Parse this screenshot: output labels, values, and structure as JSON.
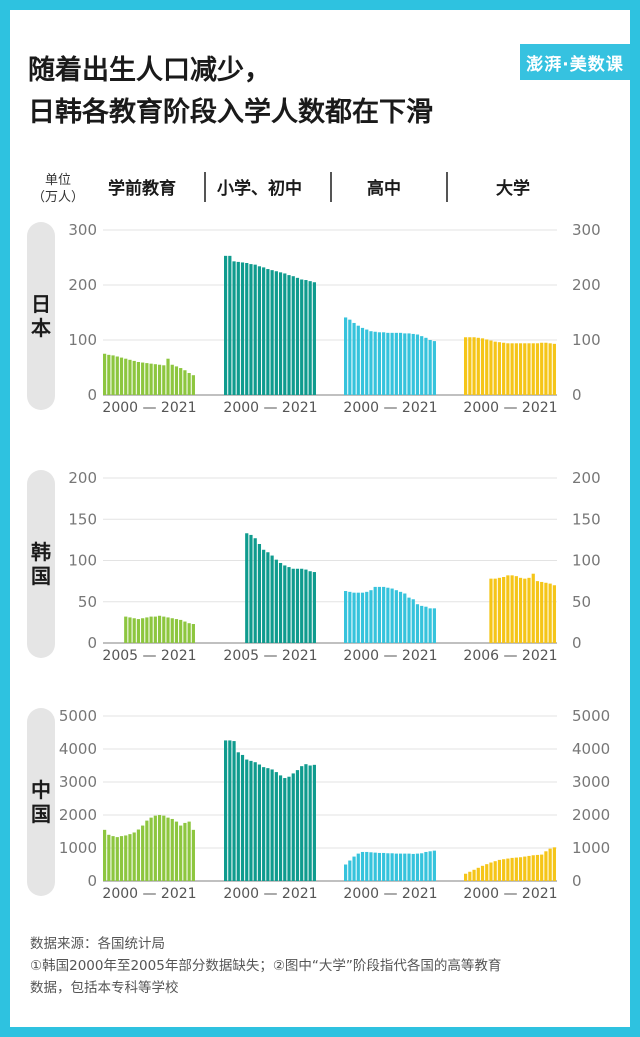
{
  "title_line1": "随着出生人口减少，",
  "title_line2": "日韩各教育阶段入学人数都在下滑",
  "logo_text": "澎湃·美数课",
  "unit_line1": "单位",
  "unit_line2": "（万人）",
  "columns": [
    "学前教育",
    "小学、初中",
    "高中",
    "大学"
  ],
  "colors": [
    "#8dc63f",
    "#0f9b8e",
    "#36c3dc",
    "#f5c518"
  ],
  "source_line1": "数据来源：各国统计局",
  "source_line2": "①韩国2000年至2005年部分数据缺失；②图中“大学”阶段指代各国的高等教育",
  "source_line3": "数据，包括本专科等学校",
  "chart_data": [
    {
      "type": "bar",
      "country": "日本",
      "ylim": [
        0,
        300
      ],
      "yticks": [
        0,
        100,
        200,
        300
      ],
      "panels": [
        {
          "name": "学前教育",
          "xlabel": "2000 — 2021",
          "start": 2000,
          "end": 2021,
          "values": [
            75,
            73,
            72,
            70,
            68,
            66,
            64,
            62,
            60,
            59,
            58,
            57,
            56,
            55,
            54,
            66,
            55,
            52,
            49,
            45,
            40,
            36
          ]
        },
        {
          "name": "小学、初中",
          "xlabel": "2000 — 2021",
          "start": 2000,
          "end": 2021,
          "values": [
            253,
            253,
            243,
            242,
            241,
            240,
            238,
            237,
            234,
            232,
            229,
            227,
            225,
            223,
            221,
            218,
            216,
            213,
            210,
            209,
            207,
            205
          ]
        },
        {
          "name": "高中",
          "xlabel": "2000 — 2021",
          "start": 2000,
          "end": 2021,
          "values": [
            141,
            137,
            131,
            126,
            122,
            119,
            116,
            115,
            114,
            114,
            113,
            113,
            113,
            113,
            112,
            112,
            111,
            110,
            107,
            104,
            100,
            98
          ]
        },
        {
          "name": "大学",
          "xlabel": "2000 — 2021",
          "start": 2000,
          "end": 2021,
          "values": [
            105,
            105,
            105,
            104,
            103,
            101,
            99,
            97,
            96,
            95,
            94,
            94,
            94,
            94,
            94,
            94,
            94,
            94,
            95,
            95,
            94,
            93
          ]
        }
      ]
    },
    {
      "type": "bar",
      "country": "韩国",
      "ylim": [
        0,
        200
      ],
      "yticks": [
        0,
        50,
        100,
        150,
        200
      ],
      "panels": [
        {
          "name": "学前教育",
          "xlabel": "2005 — 2021",
          "start": 2005,
          "end": 2021,
          "values": [
            32,
            31,
            30,
            29,
            30,
            31,
            32,
            32,
            33,
            32,
            31,
            30,
            29,
            28,
            26,
            24,
            23
          ]
        },
        {
          "name": "小学、初中",
          "xlabel": "2005 — 2021",
          "start": 2005,
          "end": 2021,
          "values": [
            133,
            131,
            127,
            120,
            113,
            110,
            106,
            101,
            97,
            94,
            92,
            90,
            90,
            90,
            89,
            87,
            86
          ]
        },
        {
          "name": "高中",
          "xlabel": "2000 — 2021",
          "start": 2000,
          "end": 2021,
          "values": [
            63,
            62,
            61,
            61,
            61,
            62,
            64,
            68,
            68,
            68,
            67,
            66,
            64,
            62,
            60,
            55,
            53,
            47,
            45,
            44,
            42,
            42
          ]
        },
        {
          "name": "大学",
          "xlabel": "2006 — 2021",
          "start": 2006,
          "end": 2021,
          "values": [
            78,
            78,
            79,
            80,
            82,
            82,
            81,
            79,
            78,
            79,
            84,
            75,
            74,
            73,
            72,
            70
          ]
        }
      ]
    },
    {
      "type": "bar",
      "country": "中国",
      "ylim": [
        0,
        5000
      ],
      "yticks": [
        0,
        1000,
        2000,
        3000,
        4000,
        5000
      ],
      "panels": [
        {
          "name": "学前教育",
          "xlabel": "2000 — 2021",
          "start": 2000,
          "end": 2021,
          "values": [
            1550,
            1400,
            1360,
            1330,
            1360,
            1380,
            1420,
            1470,
            1560,
            1680,
            1830,
            1920,
            1980,
            2000,
            1980,
            1920,
            1880,
            1800,
            1680,
            1760,
            1800,
            1550
          ]
        },
        {
          "name": "小学、初中",
          "xlabel": "2000 — 2021",
          "start": 2000,
          "end": 2021,
          "values": [
            4260,
            4260,
            4240,
            3900,
            3820,
            3680,
            3640,
            3600,
            3530,
            3450,
            3420,
            3380,
            3300,
            3200,
            3120,
            3160,
            3260,
            3360,
            3480,
            3540,
            3500,
            3520
          ]
        },
        {
          "name": "高中",
          "xlabel": "2000 — 2021",
          "start": 2000,
          "end": 2021,
          "values": [
            500,
            620,
            740,
            830,
            880,
            880,
            870,
            860,
            850,
            850,
            840,
            840,
            830,
            830,
            830,
            830,
            820,
            830,
            840,
            880,
            900,
            920
          ]
        },
        {
          "name": "大学",
          "xlabel": "2000 — 2021",
          "start": 2000,
          "end": 2021,
          "values": [
            220,
            280,
            340,
            400,
            460,
            510,
            560,
            600,
            640,
            660,
            680,
            700,
            710,
            720,
            740,
            760,
            780,
            790,
            800,
            900,
            980,
            1020
          ]
        }
      ]
    }
  ]
}
